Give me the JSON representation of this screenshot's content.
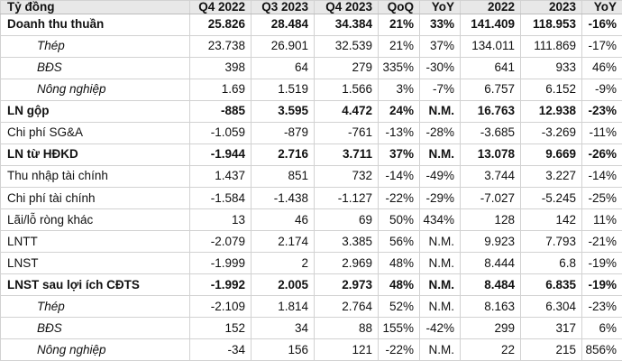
{
  "table": {
    "unit_label": "Tỷ đồng",
    "columns": [
      "Tỷ đồng",
      "Q4 2022",
      "Q3 2023",
      "Q4 2023",
      "QoQ",
      "YoY",
      "2022",
      "2023",
      "YoY"
    ],
    "rows": [
      {
        "label": "Doanh thu thuần",
        "style": "bold",
        "values": [
          "25.826",
          "28.484",
          "34.384",
          "21%",
          "33%",
          "141.409",
          "118.953",
          "-16%"
        ]
      },
      {
        "label": "Thép",
        "style": "indent",
        "values": [
          "23.738",
          "26.901",
          "32.539",
          "21%",
          "37%",
          "134.011",
          "111.869",
          "-17%"
        ]
      },
      {
        "label": "BĐS",
        "style": "indent",
        "values": [
          "398",
          "64",
          "279",
          "335%",
          "-30%",
          "641",
          "933",
          "46%"
        ]
      },
      {
        "label": "Nông nghiệp",
        "style": "indent",
        "values": [
          "1.69",
          "1.519",
          "1.566",
          "3%",
          "-7%",
          "6.757",
          "6.152",
          "-9%"
        ]
      },
      {
        "label": "LN gộp",
        "style": "bold",
        "values": [
          "-885",
          "3.595",
          "4.472",
          "24%",
          "N.M.",
          "16.763",
          "12.938",
          "-23%"
        ]
      },
      {
        "label": "Chi phí SG&A",
        "style": "normal",
        "values": [
          "-1.059",
          "-879",
          "-761",
          "-13%",
          "-28%",
          "-3.685",
          "-3.269",
          "-11%"
        ]
      },
      {
        "label": "LN từ HĐKD",
        "style": "bold",
        "values": [
          "-1.944",
          "2.716",
          "3.711",
          "37%",
          "N.M.",
          "13.078",
          "9.669",
          "-26%"
        ]
      },
      {
        "label": "Thu nhập tài chính",
        "style": "normal",
        "values": [
          "1.437",
          "851",
          "732",
          "-14%",
          "-49%",
          "3.744",
          "3.227",
          "-14%"
        ]
      },
      {
        "label": "Chi phí tài chính",
        "style": "normal",
        "values": [
          "-1.584",
          "-1.438",
          "-1.127",
          "-22%",
          "-29%",
          "-7.027",
          "-5.245",
          "-25%"
        ]
      },
      {
        "label": "Lãi/lỗ ròng khác",
        "style": "normal",
        "values": [
          "13",
          "46",
          "69",
          "50%",
          "434%",
          "128",
          "142",
          "11%"
        ]
      },
      {
        "label": "LNTT",
        "style": "normal",
        "values": [
          "-2.079",
          "2.174",
          "3.385",
          "56%",
          "N.M.",
          "9.923",
          "7.793",
          "-21%"
        ]
      },
      {
        "label": "LNST",
        "style": "normal",
        "values": [
          "-1.999",
          "2",
          "2.969",
          "48%",
          "N.M.",
          "8.444",
          "6.8",
          "-19%"
        ]
      },
      {
        "label": "LNST sau lợi ích CĐTS",
        "style": "bold",
        "values": [
          "-1.992",
          "2.005",
          "2.973",
          "48%",
          "N.M.",
          "8.484",
          "6.835",
          "-19%"
        ]
      },
      {
        "label": "Thép",
        "style": "indent",
        "values": [
          "-2.109",
          "1.814",
          "2.764",
          "52%",
          "N.M.",
          "8.163",
          "6.304",
          "-23%"
        ]
      },
      {
        "label": "BĐS",
        "style": "indent",
        "values": [
          "152",
          "34",
          "88",
          "155%",
          "-42%",
          "299",
          "317",
          "6%"
        ]
      },
      {
        "label": "Nông nghiệp",
        "style": "indent",
        "values": [
          "-34",
          "156",
          "121",
          "-22%",
          "N.M.",
          "22",
          "215",
          "856%"
        ]
      }
    ]
  },
  "colors": {
    "header_bg": "#e8e8e8",
    "grid_line": "#d2d2d2",
    "text": "#111111",
    "row_bg": "#ffffff"
  }
}
